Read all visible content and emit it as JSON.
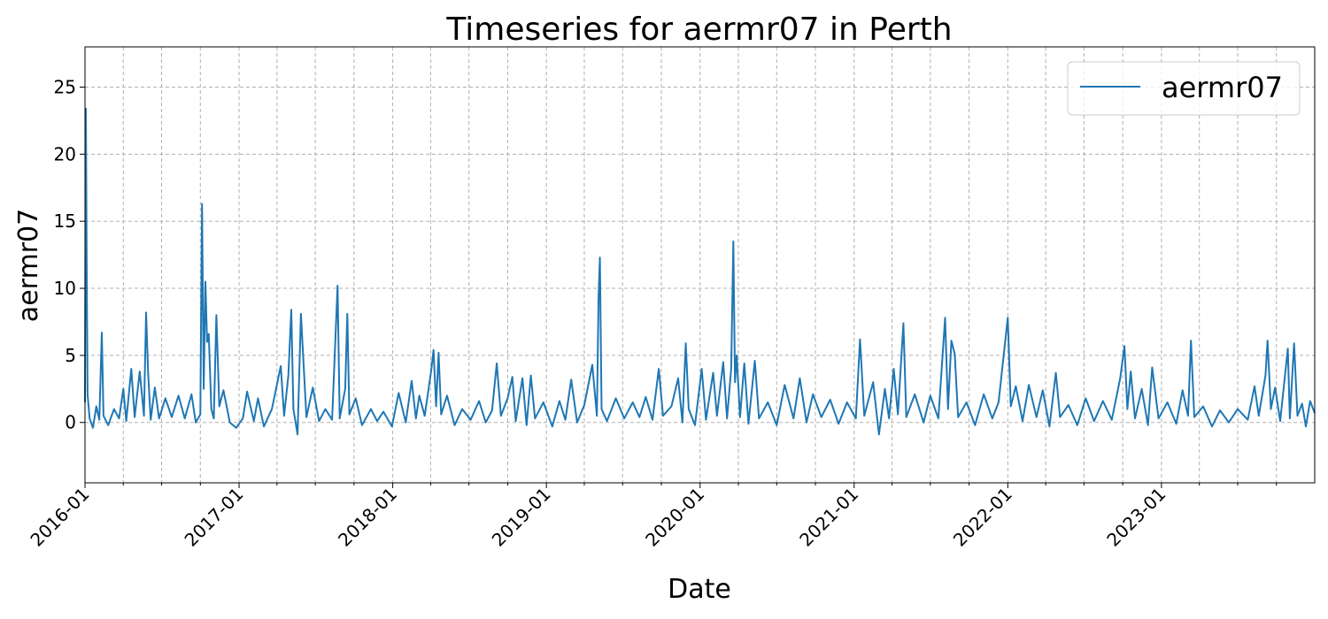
{
  "chart_data": {
    "type": "line",
    "title": "Timeseries for aermr07 in Perth",
    "xlabel": "Date",
    "ylabel": "aermr07",
    "x_range": [
      "2016-01-01",
      "2023-12-31"
    ],
    "ylim": [
      -4.5,
      28
    ],
    "y_ticks": [
      0,
      5,
      10,
      15,
      20,
      25
    ],
    "x_tick_labels": [
      "2016-01",
      "2017-01",
      "2018-01",
      "2019-01",
      "2020-01",
      "2021-01",
      "2022-01",
      "2023-01"
    ],
    "x_tick_dates": [
      "2016-01-01",
      "2017-01-01",
      "2018-01-01",
      "2019-01-01",
      "2020-01-01",
      "2021-01-01",
      "2022-01-01",
      "2023-01-01"
    ],
    "grid": true,
    "legend_position": "top-right",
    "colors": {
      "series": "#1f77b4",
      "grid": "#b0b0b0"
    },
    "series": [
      {
        "name": "aermr07",
        "points": [
          [
            "2016-01-01",
            1.5
          ],
          [
            "2016-01-03",
            23.4
          ],
          [
            "2016-01-05",
            12.0
          ],
          [
            "2016-01-07",
            2.1
          ],
          [
            "2016-01-12",
            0.3
          ],
          [
            "2016-01-20",
            -0.4
          ],
          [
            "2016-01-28",
            1.2
          ],
          [
            "2016-02-04",
            0.2
          ],
          [
            "2016-02-10",
            6.7
          ],
          [
            "2016-02-14",
            0.5
          ],
          [
            "2016-02-25",
            -0.2
          ],
          [
            "2016-03-10",
            1.0
          ],
          [
            "2016-03-22",
            0.3
          ],
          [
            "2016-04-01",
            2.5
          ],
          [
            "2016-04-08",
            0.1
          ],
          [
            "2016-04-20",
            4.0
          ],
          [
            "2016-04-28",
            0.4
          ],
          [
            "2016-05-10",
            3.8
          ],
          [
            "2016-05-20",
            0.5
          ],
          [
            "2016-05-25",
            8.2
          ],
          [
            "2016-05-30",
            3.7
          ],
          [
            "2016-06-05",
            0.2
          ],
          [
            "2016-06-15",
            2.6
          ],
          [
            "2016-06-25",
            0.3
          ],
          [
            "2016-07-10",
            1.8
          ],
          [
            "2016-07-25",
            0.4
          ],
          [
            "2016-08-10",
            2.0
          ],
          [
            "2016-08-25",
            0.3
          ],
          [
            "2016-09-10",
            2.1
          ],
          [
            "2016-09-20",
            0.0
          ],
          [
            "2016-10-01",
            0.6
          ],
          [
            "2016-10-05",
            16.3
          ],
          [
            "2016-10-09",
            2.5
          ],
          [
            "2016-10-13",
            10.5
          ],
          [
            "2016-10-17",
            6.0
          ],
          [
            "2016-10-21",
            6.6
          ],
          [
            "2016-10-27",
            1.0
          ],
          [
            "2016-11-02",
            0.3
          ],
          [
            "2016-11-08",
            8.0
          ],
          [
            "2016-11-15",
            1.2
          ],
          [
            "2016-11-25",
            2.4
          ],
          [
            "2016-12-10",
            0.0
          ],
          [
            "2016-12-25",
            -0.4
          ],
          [
            "2017-01-10",
            0.3
          ],
          [
            "2017-01-20",
            2.3
          ],
          [
            "2017-02-05",
            0.1
          ],
          [
            "2017-02-15",
            1.8
          ],
          [
            "2017-03-01",
            -0.3
          ],
          [
            "2017-03-20",
            1.0
          ],
          [
            "2017-04-10",
            4.2
          ],
          [
            "2017-04-18",
            0.5
          ],
          [
            "2017-04-28",
            3.5
          ],
          [
            "2017-05-05",
            8.4
          ],
          [
            "2017-05-10",
            1.0
          ],
          [
            "2017-05-20",
            -0.9
          ],
          [
            "2017-05-28",
            8.1
          ],
          [
            "2017-06-02",
            5.1
          ],
          [
            "2017-06-10",
            0.4
          ],
          [
            "2017-06-25",
            2.6
          ],
          [
            "2017-07-10",
            0.1
          ],
          [
            "2017-07-25",
            1.0
          ],
          [
            "2017-08-10",
            0.2
          ],
          [
            "2017-08-23",
            10.2
          ],
          [
            "2017-08-28",
            0.3
          ],
          [
            "2017-09-10",
            2.5
          ],
          [
            "2017-09-15",
            8.1
          ],
          [
            "2017-09-20",
            0.6
          ],
          [
            "2017-10-05",
            1.8
          ],
          [
            "2017-10-20",
            -0.2
          ],
          [
            "2017-11-10",
            1.0
          ],
          [
            "2017-11-25",
            0.1
          ],
          [
            "2017-12-10",
            0.8
          ],
          [
            "2017-12-30",
            -0.3
          ],
          [
            "2018-01-15",
            2.2
          ],
          [
            "2018-02-01",
            0.0
          ],
          [
            "2018-02-15",
            3.1
          ],
          [
            "2018-02-25",
            0.3
          ],
          [
            "2018-03-05",
            2.0
          ],
          [
            "2018-03-18",
            0.5
          ],
          [
            "2018-04-02",
            3.8
          ],
          [
            "2018-04-08",
            5.4
          ],
          [
            "2018-04-14",
            1.2
          ],
          [
            "2018-04-20",
            5.2
          ],
          [
            "2018-04-26",
            0.6
          ],
          [
            "2018-05-10",
            2.0
          ],
          [
            "2018-05-28",
            -0.2
          ],
          [
            "2018-06-15",
            1.0
          ],
          [
            "2018-07-05",
            0.2
          ],
          [
            "2018-07-25",
            1.6
          ],
          [
            "2018-08-10",
            0.0
          ],
          [
            "2018-08-25",
            0.9
          ],
          [
            "2018-09-05",
            4.4
          ],
          [
            "2018-09-15",
            0.5
          ],
          [
            "2018-10-01",
            1.8
          ],
          [
            "2018-10-12",
            3.4
          ],
          [
            "2018-10-20",
            0.1
          ],
          [
            "2018-11-05",
            3.3
          ],
          [
            "2018-11-15",
            -0.2
          ],
          [
            "2018-11-25",
            3.5
          ],
          [
            "2018-12-05",
            0.3
          ],
          [
            "2018-12-25",
            1.5
          ],
          [
            "2019-01-15",
            -0.3
          ],
          [
            "2019-02-01",
            1.6
          ],
          [
            "2019-02-15",
            0.2
          ],
          [
            "2019-03-01",
            3.2
          ],
          [
            "2019-03-15",
            0.0
          ],
          [
            "2019-04-01",
            1.3
          ],
          [
            "2019-04-20",
            4.3
          ],
          [
            "2019-05-01",
            0.5
          ],
          [
            "2019-05-05",
            9.4
          ],
          [
            "2019-05-08",
            12.3
          ],
          [
            "2019-05-12",
            1.0
          ],
          [
            "2019-05-25",
            0.1
          ],
          [
            "2019-06-15",
            1.8
          ],
          [
            "2019-07-05",
            0.3
          ],
          [
            "2019-07-25",
            1.5
          ],
          [
            "2019-08-10",
            0.4
          ],
          [
            "2019-08-25",
            1.9
          ],
          [
            "2019-09-10",
            0.2
          ],
          [
            "2019-09-25",
            4.0
          ],
          [
            "2019-10-05",
            0.5
          ],
          [
            "2019-10-25",
            1.2
          ],
          [
            "2019-11-10",
            3.3
          ],
          [
            "2019-11-20",
            0.0
          ],
          [
            "2019-11-28",
            5.9
          ],
          [
            "2019-12-05",
            1.0
          ],
          [
            "2019-12-20",
            -0.2
          ],
          [
            "2020-01-05",
            4.0
          ],
          [
            "2020-01-15",
            0.2
          ],
          [
            "2020-02-01",
            3.7
          ],
          [
            "2020-02-10",
            0.5
          ],
          [
            "2020-02-25",
            4.5
          ],
          [
            "2020-03-05",
            0.3
          ],
          [
            "2020-03-15",
            4.0
          ],
          [
            "2020-03-20",
            13.5
          ],
          [
            "2020-03-24",
            3.0
          ],
          [
            "2020-03-28",
            5.0
          ],
          [
            "2020-04-05",
            0.4
          ],
          [
            "2020-04-15",
            4.4
          ],
          [
            "2020-04-25",
            -0.1
          ],
          [
            "2020-05-10",
            4.6
          ],
          [
            "2020-05-20",
            0.3
          ],
          [
            "2020-06-10",
            1.5
          ],
          [
            "2020-07-01",
            -0.2
          ],
          [
            "2020-07-20",
            2.8
          ],
          [
            "2020-08-10",
            0.3
          ],
          [
            "2020-08-25",
            3.3
          ],
          [
            "2020-09-10",
            0.0
          ],
          [
            "2020-09-25",
            2.1
          ],
          [
            "2020-10-15",
            0.4
          ],
          [
            "2020-11-05",
            1.7
          ],
          [
            "2020-11-25",
            -0.1
          ],
          [
            "2020-12-15",
            1.5
          ],
          [
            "2021-01-05",
            0.3
          ],
          [
            "2021-01-15",
            6.2
          ],
          [
            "2021-01-25",
            0.5
          ],
          [
            "2021-02-15",
            3.0
          ],
          [
            "2021-03-01",
            -0.9
          ],
          [
            "2021-03-15",
            2.5
          ],
          [
            "2021-03-25",
            0.3
          ],
          [
            "2021-04-05",
            4.0
          ],
          [
            "2021-04-15",
            0.6
          ],
          [
            "2021-04-28",
            7.4
          ],
          [
            "2021-05-05",
            0.4
          ],
          [
            "2021-05-25",
            2.1
          ],
          [
            "2021-06-15",
            0.0
          ],
          [
            "2021-07-01",
            2.0
          ],
          [
            "2021-07-20",
            0.3
          ],
          [
            "2021-08-05",
            7.8
          ],
          [
            "2021-08-12",
            1.0
          ],
          [
            "2021-08-20",
            6.1
          ],
          [
            "2021-08-28",
            5.1
          ],
          [
            "2021-09-05",
            0.4
          ],
          [
            "2021-09-25",
            1.5
          ],
          [
            "2021-10-15",
            -0.2
          ],
          [
            "2021-11-05",
            2.1
          ],
          [
            "2021-11-25",
            0.3
          ],
          [
            "2021-12-10",
            1.5
          ],
          [
            "2022-01-01",
            7.8
          ],
          [
            "2022-01-08",
            1.2
          ],
          [
            "2022-01-20",
            2.7
          ],
          [
            "2022-02-05",
            0.1
          ],
          [
            "2022-02-20",
            2.8
          ],
          [
            "2022-03-10",
            0.4
          ],
          [
            "2022-03-25",
            2.4
          ],
          [
            "2022-04-10",
            -0.3
          ],
          [
            "2022-04-25",
            3.7
          ],
          [
            "2022-05-05",
            0.4
          ],
          [
            "2022-05-25",
            1.3
          ],
          [
            "2022-06-15",
            -0.2
          ],
          [
            "2022-07-05",
            1.8
          ],
          [
            "2022-07-25",
            0.1
          ],
          [
            "2022-08-15",
            1.6
          ],
          [
            "2022-09-05",
            0.2
          ],
          [
            "2022-09-25",
            3.3
          ],
          [
            "2022-10-05",
            5.7
          ],
          [
            "2022-10-12",
            1.0
          ],
          [
            "2022-10-20",
            3.8
          ],
          [
            "2022-10-30",
            0.3
          ],
          [
            "2022-11-15",
            2.5
          ],
          [
            "2022-11-30",
            -0.2
          ],
          [
            "2022-12-10",
            4.1
          ],
          [
            "2022-12-25",
            0.3
          ],
          [
            "2023-01-15",
            1.5
          ],
          [
            "2023-02-05",
            -0.1
          ],
          [
            "2023-02-20",
            2.4
          ],
          [
            "2023-03-05",
            0.5
          ],
          [
            "2023-03-12",
            6.1
          ],
          [
            "2023-03-20",
            0.4
          ],
          [
            "2023-04-10",
            1.2
          ],
          [
            "2023-05-01",
            -0.3
          ],
          [
            "2023-05-20",
            0.9
          ],
          [
            "2023-06-10",
            0.0
          ],
          [
            "2023-07-01",
            1.0
          ],
          [
            "2023-07-25",
            0.2
          ],
          [
            "2023-08-10",
            2.7
          ],
          [
            "2023-08-20",
            0.5
          ],
          [
            "2023-09-05",
            3.5
          ],
          [
            "2023-09-10",
            6.1
          ],
          [
            "2023-09-18",
            1.0
          ],
          [
            "2023-09-28",
            2.6
          ],
          [
            "2023-10-10",
            0.1
          ],
          [
            "2023-10-28",
            5.5
          ],
          [
            "2023-11-02",
            0.3
          ],
          [
            "2023-11-12",
            5.9
          ],
          [
            "2023-11-20",
            0.5
          ],
          [
            "2023-12-01",
            1.4
          ],
          [
            "2023-12-10",
            -0.3
          ],
          [
            "2023-12-20",
            1.6
          ],
          [
            "2023-12-31",
            0.7
          ]
        ]
      }
    ]
  }
}
